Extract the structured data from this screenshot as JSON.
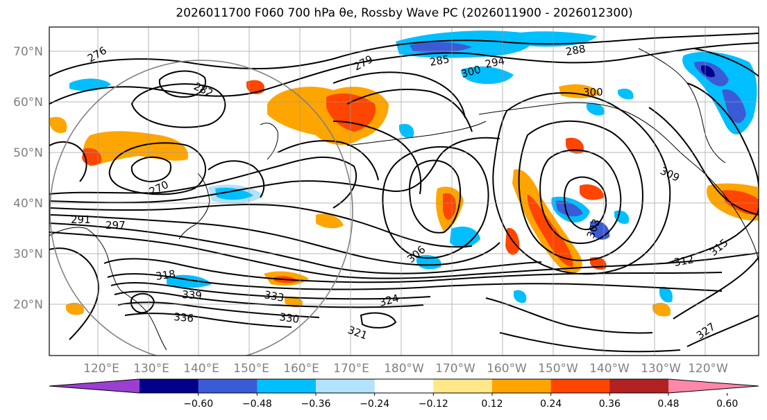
{
  "title": {
    "text": "2026011700 F060 700 hPa θe, Rossby Wave PC (2026011900 - 2026012300)"
  },
  "map": {
    "lat_ticks": [
      "70°N",
      "60°N",
      "50°N",
      "40°N",
      "30°N",
      "20°N"
    ],
    "lon_ticks": [
      "120°E",
      "130°E",
      "140°E",
      "150°E",
      "160°E",
      "170°E",
      "180°W",
      "170°W",
      "160°W",
      "150°W",
      "140°W",
      "130°W",
      "120°W"
    ],
    "contour_labels": [
      "276",
      "279",
      "282",
      "285",
      "288",
      "294",
      "300",
      "303",
      "306",
      "309",
      "312",
      "315",
      "318",
      "321",
      "324",
      "327",
      "330",
      "333",
      "336",
      "339",
      "270",
      "291",
      "297",
      "300"
    ]
  },
  "colorbar": {
    "colors": [
      "#9a3fd0",
      "#00008b",
      "#3b5bd6",
      "#00bfff",
      "#b3e2fb",
      "#ffffff",
      "#ffe88a",
      "#ffa500",
      "#ff4500",
      "#b22222",
      "#ff88aa"
    ],
    "labels": [
      "−0.60",
      "−0.48",
      "−0.36",
      "−0.24",
      "−0.12",
      "0.12",
      "0.24",
      "0.36",
      "0.48",
      "0.60"
    ]
  }
}
